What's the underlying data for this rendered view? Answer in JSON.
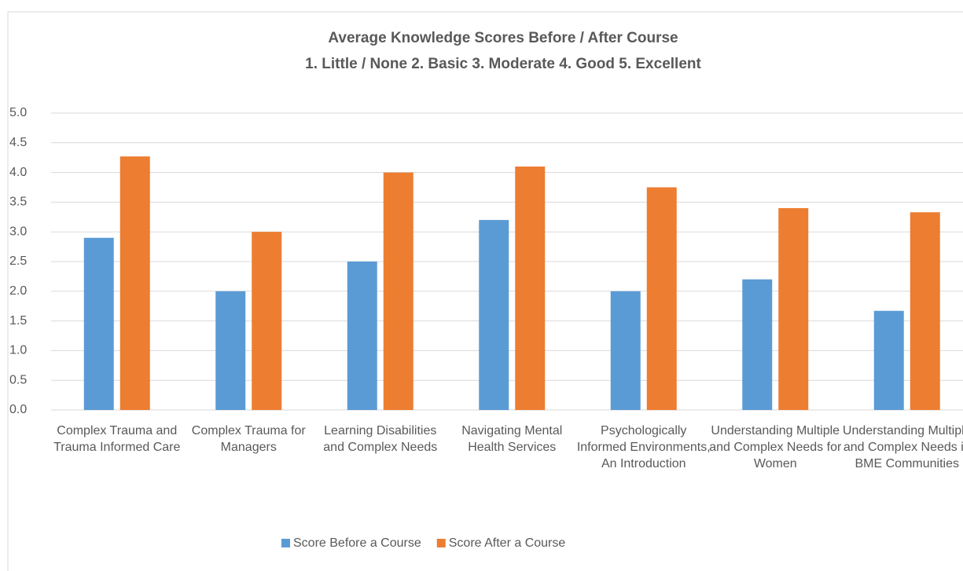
{
  "chart_data": {
    "type": "bar",
    "title": "Average Knowledge Scores Before / After Course",
    "subtitle": "1. Little / None 2. Basic 3. Moderate 4. Good 5. Excellent",
    "categories": [
      "Complex Trauma and Trauma Informed Care",
      "Complex Trauma for Managers",
      "Learning Disabilities and Complex Needs",
      "Navigating Mental Health Services",
      "Psychologically Informed Environments, An Introduction",
      "Understanding Multiple and Complex Needs for Women",
      "Understanding Multiple and Complex Needs in BME Communities"
    ],
    "series": [
      {
        "name": "Score Before a Course",
        "color": "#5b9bd5",
        "values": [
          2.9,
          2.0,
          2.5,
          3.2,
          2.0,
          2.2,
          1.67
        ]
      },
      {
        "name": "Score After a Course",
        "color": "#ed7d31",
        "values": [
          4.27,
          3.0,
          4.0,
          4.1,
          3.75,
          3.4,
          3.33
        ]
      }
    ],
    "ylim": [
      0,
      5
    ],
    "yticks": [
      {
        "value": 0,
        "label": "0.0"
      },
      0.5,
      {
        "value": 1,
        "label": "1.0"
      },
      1.5,
      {
        "value": 2,
        "label": "2.0"
      },
      2.5,
      {
        "value": 3,
        "label": "3.0"
      },
      3.5,
      {
        "value": 4,
        "label": "4.0"
      },
      4.5,
      {
        "value": 5,
        "label": "5.0"
      }
    ],
    "grid": true,
    "legend": "bottom"
  }
}
